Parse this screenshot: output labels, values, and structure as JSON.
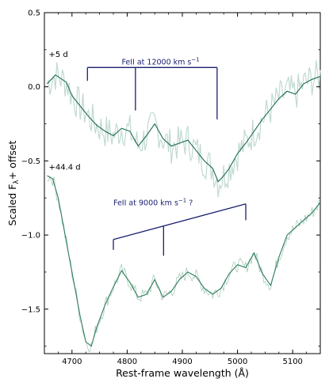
{
  "chart_data": {
    "type": "line",
    "title": "",
    "xlabel": "Rest-frame wavelength (Å)",
    "ylabel": "Scaled F_λ+ offset",
    "xlim": [
      4650,
      5150
    ],
    "ylim": [
      -1.8,
      0.5
    ],
    "xticks": [
      4700,
      4800,
      4900,
      5000,
      5100
    ],
    "yticks": [
      0.5,
      0.0,
      -0.5,
      -1.0,
      -1.5
    ],
    "xtick_labels": [
      "4700",
      "4800",
      "4900",
      "5000",
      "5100"
    ],
    "ytick_labels": [
      "0.5",
      "0.0",
      "−0.5",
      "−1.0",
      "−1.5"
    ],
    "grid": false,
    "colors": {
      "top_series": "#1b6b50",
      "top_raw": "#b9d6cb",
      "bottom_series": "#2f7c5a",
      "bottom_raw": "#9fc7b3",
      "markers": "#1a1f6e"
    },
    "series": [
      {
        "name": "+5 d",
        "label_pos": [
          4655,
          0.2
        ],
        "x": [
          4655,
          4670,
          4690,
          4700,
          4715,
          4730,
          4745,
          4760,
          4775,
          4790,
          4805,
          4820,
          4835,
          4850,
          4865,
          4880,
          4895,
          4910,
          4925,
          4940,
          4955,
          4965,
          4975,
          4985,
          5000,
          5015,
          5030,
          5045,
          5060,
          5075,
          5090,
          5105,
          5120,
          5135,
          5150
        ],
        "y": [
          0.02,
          0.08,
          0.03,
          -0.06,
          -0.13,
          -0.2,
          -0.26,
          -0.3,
          -0.33,
          -0.28,
          -0.3,
          -0.4,
          -0.33,
          -0.25,
          -0.35,
          -0.4,
          -0.38,
          -0.36,
          -0.43,
          -0.5,
          -0.55,
          -0.64,
          -0.6,
          -0.55,
          -0.45,
          -0.38,
          -0.3,
          -0.22,
          -0.15,
          -0.08,
          -0.03,
          -0.05,
          0.02,
          0.05,
          0.07
        ]
      },
      {
        "name": "+44.4 d",
        "label_pos": [
          4655,
          -0.56
        ],
        "x": [
          4655,
          4665,
          4675,
          4685,
          4695,
          4705,
          4715,
          4725,
          4735,
          4745,
          4760,
          4775,
          4790,
          4805,
          4820,
          4835,
          4850,
          4865,
          4880,
          4895,
          4910,
          4925,
          4940,
          4955,
          4970,
          4985,
          5000,
          5015,
          5030,
          5045,
          5060,
          5075,
          5090,
          5105,
          5120,
          5135,
          5150
        ],
        "y": [
          -0.6,
          -0.62,
          -0.75,
          -0.95,
          -1.15,
          -1.35,
          -1.55,
          -1.72,
          -1.75,
          -1.62,
          -1.47,
          -1.35,
          -1.24,
          -1.32,
          -1.42,
          -1.4,
          -1.3,
          -1.42,
          -1.38,
          -1.3,
          -1.25,
          -1.28,
          -1.36,
          -1.4,
          -1.36,
          -1.26,
          -1.2,
          -1.22,
          -1.12,
          -1.26,
          -1.34,
          -1.15,
          -1.0,
          -0.95,
          -0.9,
          -0.85,
          -0.78
        ]
      }
    ],
    "annotations": [
      {
        "text": "FeII at 12000 km s",
        "sup": "−1",
        "x": 4790,
        "y": 0.15,
        "lines": [
          4728,
          4815,
          4963
        ],
        "top": [
          0.13,
          0.13
        ],
        "ends": [
          0.04,
          -0.16,
          -0.22
        ]
      },
      {
        "text": "FeII at 9000 km s",
        "sup": "−1",
        "suffix": " ?",
        "x": 4775,
        "y": -0.8,
        "lines": [
          4775,
          4866,
          5015
        ],
        "top": [
          -1.03,
          -0.79
        ],
        "ends": [
          -1.1,
          -1.14,
          -0.9
        ]
      }
    ]
  }
}
